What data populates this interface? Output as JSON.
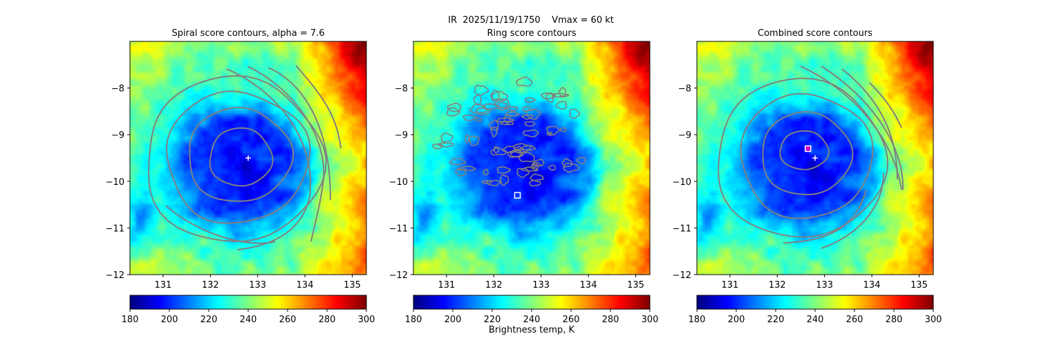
{
  "figure": {
    "suptitle": "IR  2025/11/19/1750    Vmax = 60 kt",
    "colorbar_label": "Brightness temp, K"
  },
  "chart_data": [
    {
      "type": "heatmap",
      "title": "Spiral score contours, alpha =  7.6",
      "xlim": [
        130.3,
        135.3
      ],
      "ylim": [
        -12.0,
        -7.0
      ],
      "xticks": [
        "131",
        "132",
        "133",
        "134",
        "135"
      ],
      "yticks": [
        "-8",
        "-9",
        "-10",
        "-11",
        "-12"
      ],
      "colormap": "jet",
      "colorbar_ticks": [
        "180",
        "200",
        "220",
        "240",
        "260",
        "280",
        "300"
      ],
      "colorbar_range": [
        180,
        300
      ],
      "marker_plus": [
        132.8,
        -9.5
      ],
      "contour_color": "#808080"
    },
    {
      "type": "heatmap",
      "title": "Ring score contours",
      "xlim": [
        130.3,
        135.3
      ],
      "ylim": [
        -12.0,
        -7.0
      ],
      "xticks": [
        "131",
        "132",
        "133",
        "134",
        "135"
      ],
      "yticks": [
        "-8",
        "-9",
        "-10",
        "-11",
        "-12"
      ],
      "colormap": "jet",
      "colorbar_ticks": [
        "180",
        "200",
        "220",
        "240",
        "260",
        "280",
        "300"
      ],
      "colorbar_range": [
        180,
        300
      ],
      "marker_square": [
        132.5,
        -10.3
      ],
      "contour_color": "#808080"
    },
    {
      "type": "heatmap",
      "title": "Combined score contours",
      "xlim": [
        130.3,
        135.3
      ],
      "ylim": [
        -12.0,
        -7.0
      ],
      "xticks": [
        "131",
        "132",
        "133",
        "134",
        "135"
      ],
      "yticks": [
        "-8",
        "-9",
        "-10",
        "-11",
        "-12"
      ],
      "colormap": "jet",
      "colorbar_ticks": [
        "180",
        "200",
        "220",
        "240",
        "260",
        "280",
        "300"
      ],
      "colorbar_range": [
        180,
        300
      ],
      "marker_plus": [
        132.8,
        -9.5
      ],
      "marker_square": [
        132.65,
        -9.3
      ],
      "contour_color": "#808080"
    }
  ]
}
